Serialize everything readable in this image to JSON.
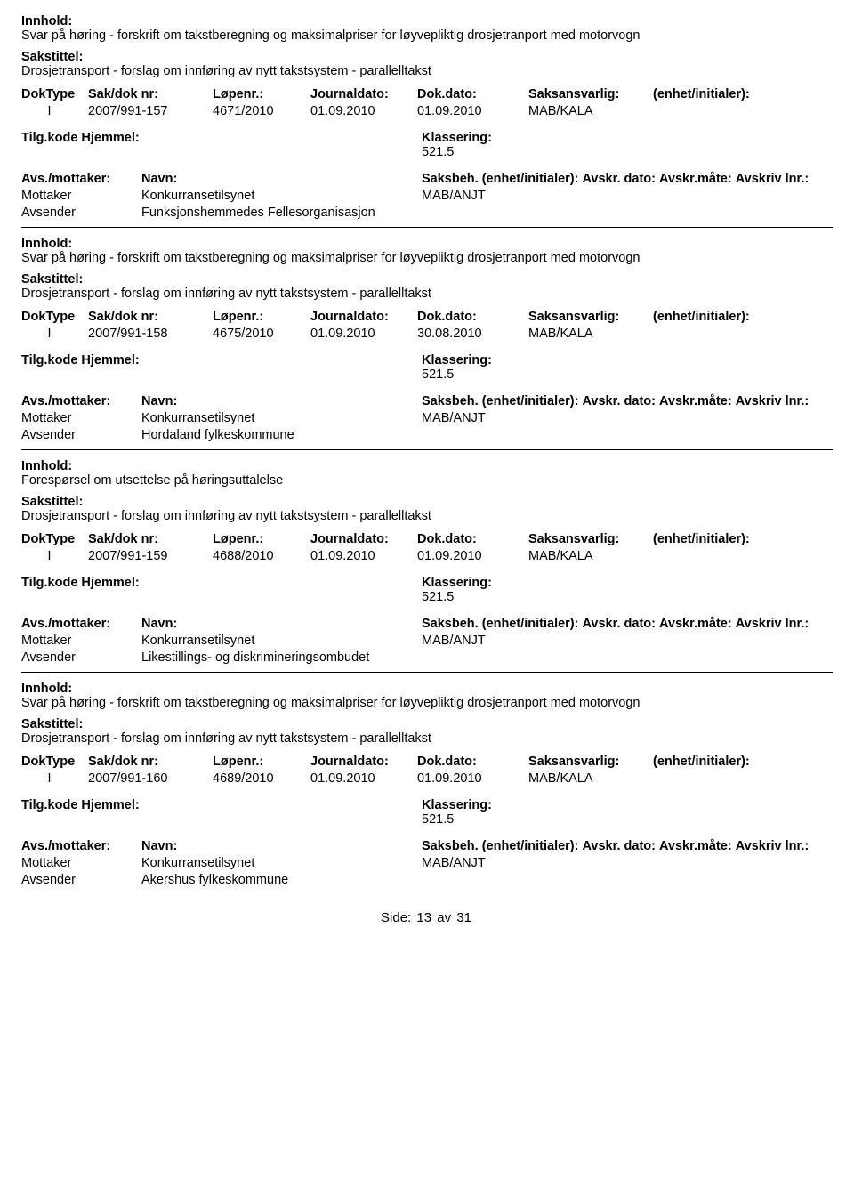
{
  "labels": {
    "innhold": "Innhold:",
    "sakstittel": "Sakstittel:",
    "doktype": "DokType",
    "sakdoknr": "Sak/dok nr:",
    "lopenr": "Løpenr.:",
    "journaldato": "Journaldato:",
    "dokdato": "Dok.dato:",
    "saksansvarlig": "Saksansvarlig:",
    "enhet": "(enhet/initialer):",
    "tilgkode": "Tilg.kode",
    "hjemmel": "Hjemmel:",
    "klassering": "Klassering:",
    "avsmottaker": "Avs./mottaker:",
    "navn": "Navn:",
    "saksbeh": "Saksbeh.",
    "saksbeh_enhet": "(enhet/initialer):",
    "avskr_dato": "Avskr. dato:",
    "avskr_mate": "Avskr.måte:",
    "avskriv_lnr": "Avskriv lnr.:",
    "mottaker": "Mottaker",
    "avsender": "Avsender",
    "side": "Side:",
    "av": "av"
  },
  "page": {
    "current": "13",
    "total": "31"
  },
  "records": [
    {
      "innhold": "Svar på høring - forskrift om takstberegning og maksimalpriser for løyvepliktig drosjetranport med motorvogn",
      "sakstittel": "Drosjetransport - forslag om innføring av nytt takstsystem - parallelltakst",
      "doktype": "I",
      "sakdoknr": "2007/991-157",
      "lopenr": "4671/2010",
      "journaldato": "01.09.2010",
      "dokdato": "01.09.2010",
      "saksansvarlig": "MAB/KALA",
      "klassering": "521.5",
      "mottaker_navn": "Konkurransetilsynet",
      "avsender_navn": "Funksjonshemmedes Fellesorganisasjon",
      "saksbeh_val": "MAB/ANJT"
    },
    {
      "innhold": "Svar på høring - forskrift om takstberegning og maksimalpriser for løyvepliktig drosjetranport med motorvogn",
      "sakstittel": "Drosjetransport - forslag om innføring av nytt takstsystem - parallelltakst",
      "doktype": "I",
      "sakdoknr": "2007/991-158",
      "lopenr": "4675/2010",
      "journaldato": "01.09.2010",
      "dokdato": "30.08.2010",
      "saksansvarlig": "MAB/KALA",
      "klassering": "521.5",
      "mottaker_navn": "Konkurransetilsynet",
      "avsender_navn": "Hordaland fylkeskommune",
      "saksbeh_val": "MAB/ANJT"
    },
    {
      "innhold": "Forespørsel om utsettelse på høringsuttalelse",
      "sakstittel": "Drosjetransport - forslag om innføring av nytt takstsystem - parallelltakst",
      "doktype": "I",
      "sakdoknr": "2007/991-159",
      "lopenr": "4688/2010",
      "journaldato": "01.09.2010",
      "dokdato": "01.09.2010",
      "saksansvarlig": "MAB/KALA",
      "klassering": "521.5",
      "mottaker_navn": "Konkurransetilsynet",
      "avsender_navn": "Likestillings- og diskrimineringsombudet",
      "saksbeh_val": "MAB/ANJT"
    },
    {
      "innhold": "Svar på høring - forskrift om takstberegning og maksimalpriser for løyvepliktig drosjetranport med motorvogn",
      "sakstittel": "Drosjetransport - forslag om innføring av nytt takstsystem - parallelltakst",
      "doktype": "I",
      "sakdoknr": "2007/991-160",
      "lopenr": "4689/2010",
      "journaldato": "01.09.2010",
      "dokdato": "01.09.2010",
      "saksansvarlig": "MAB/KALA",
      "klassering": "521.5",
      "mottaker_navn": "Konkurransetilsynet",
      "avsender_navn": "Akershus fylkeskommune",
      "saksbeh_val": "MAB/ANJT"
    }
  ]
}
